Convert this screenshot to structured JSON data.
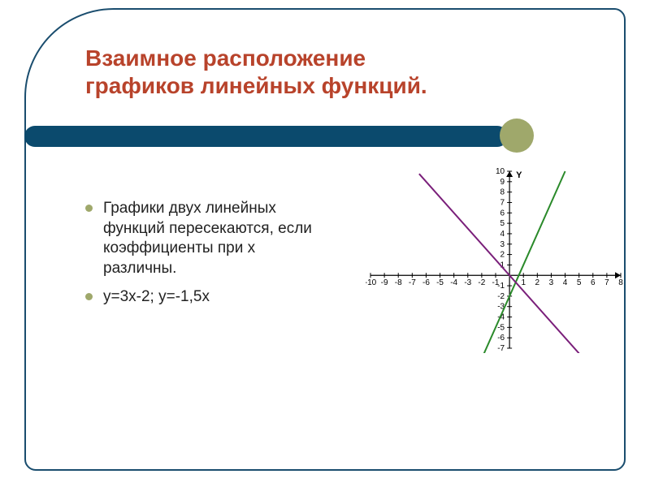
{
  "title_line1": "Взаимное расположение",
  "title_line2": "графиков линейных функций.",
  "bullet1": "Графики двух линейных функций пересекаются, если коэффициенты при х различны.",
  "bullet2": "y=3x-2;  y=-1,5x",
  "chart": {
    "type": "line",
    "xlim": [
      -10,
      8
    ],
    "ylim": [
      -7,
      10
    ],
    "xticks": [
      -10,
      -9,
      -8,
      -7,
      -6,
      -5,
      -4,
      -3,
      -2,
      -1,
      1,
      2,
      3,
      4,
      5,
      6,
      7,
      8
    ],
    "yticks": [
      -7,
      -6,
      -5,
      -4,
      -3,
      -2,
      -1,
      1,
      2,
      3,
      4,
      5,
      6,
      7,
      8,
      9,
      10
    ],
    "axis_label_y": "Y",
    "axis_color": "#000000",
    "tick_length": 3,
    "lines": [
      {
        "m": 3,
        "b": -2,
        "color": "#2a8a2a",
        "width": 2,
        "x_range": [
          -2,
          4
        ]
      },
      {
        "m": -1.5,
        "b": 0,
        "color": "#7a1f7a",
        "width": 2,
        "x_range": [
          -6.5,
          5
        ]
      }
    ],
    "background_color": "#ffffff",
    "label_fontsize": 10
  },
  "colors": {
    "title": "#b8432b",
    "frame": "#1a4d6e",
    "bar": "#0b4a6d",
    "accent": "#9fa86b"
  }
}
